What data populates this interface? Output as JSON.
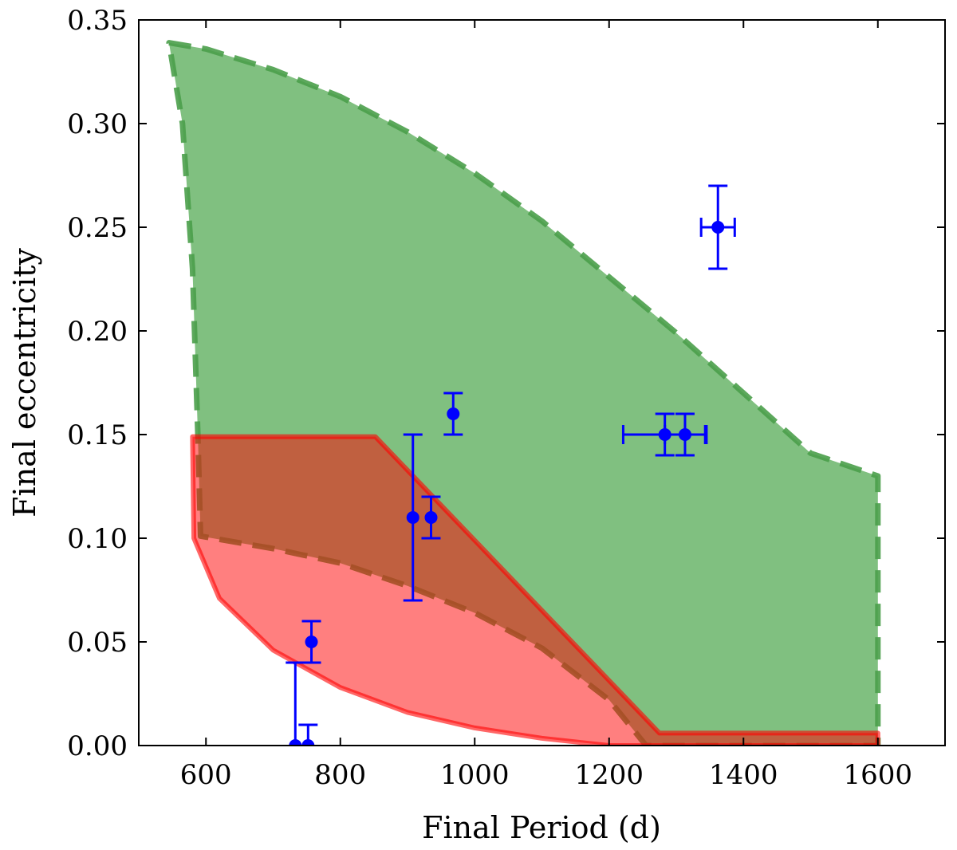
{
  "chart_data": {
    "type": "scatter",
    "title": "",
    "xlabel": "Final Period (d)",
    "ylabel": "Final eccentricity",
    "xlim": [
      500,
      1700
    ],
    "ylim": [
      0.0,
      0.35
    ],
    "x_ticks": [
      600,
      800,
      1000,
      1200,
      1400,
      1600
    ],
    "x_tick_labels": [
      "600",
      "800",
      "1000",
      "1200",
      "1400",
      "1600"
    ],
    "y_ticks": [
      0.0,
      0.05,
      0.1,
      0.15,
      0.2,
      0.25,
      0.3,
      0.35
    ],
    "y_tick_labels": [
      "0.00",
      "0.05",
      "0.10",
      "0.15",
      "0.20",
      "0.25",
      "0.30",
      "0.35"
    ],
    "grid": false,
    "regions": [
      {
        "style": "dashed-outline",
        "fill_color": "#80c080",
        "edge_color": "#4a9f4a",
        "polygon": [
          [
            545,
            0.339
          ],
          [
            600,
            0.336
          ],
          [
            700,
            0.326
          ],
          [
            800,
            0.313
          ],
          [
            900,
            0.296
          ],
          [
            1000,
            0.276
          ],
          [
            1100,
            0.253
          ],
          [
            1200,
            0.226
          ],
          [
            1300,
            0.199
          ],
          [
            1400,
            0.17
          ],
          [
            1500,
            0.141
          ],
          [
            1600,
            0.13
          ],
          [
            1600,
            0.0
          ],
          [
            1255,
            0.0
          ],
          [
            1200,
            0.022
          ],
          [
            1100,
            0.047
          ],
          [
            1000,
            0.064
          ],
          [
            900,
            0.077
          ],
          [
            800,
            0.088
          ],
          [
            700,
            0.095
          ],
          [
            592,
            0.101
          ],
          [
            588,
            0.15
          ],
          [
            580,
            0.23
          ],
          [
            565,
            0.3
          ]
        ]
      },
      {
        "style": "solid-outline",
        "fill_color": "#ff0000",
        "fill_opacity": 0.5,
        "edge_color": "#ff0000",
        "polygon": [
          [
            580,
            0.149
          ],
          [
            852,
            0.149
          ],
          [
            1275,
            0.006
          ],
          [
            1600,
            0.006
          ],
          [
            1600,
            0.0
          ],
          [
            1200,
            0.0
          ],
          [
            1100,
            0.0035
          ],
          [
            1000,
            0.0085
          ],
          [
            900,
            0.016
          ],
          [
            800,
            0.028
          ],
          [
            700,
            0.046
          ],
          [
            620,
            0.071
          ],
          [
            582,
            0.1
          ]
        ]
      }
    ],
    "series": [
      {
        "marker_color": "#0000ff",
        "points": [
          {
            "x": 733,
            "y": 0.0,
            "y_err_low": 0.0,
            "y_err_high": 0.04,
            "x_err": 0
          },
          {
            "x": 752,
            "y": 0.0,
            "y_err_low": 0.0,
            "y_err_high": 0.01,
            "x_err": 0
          },
          {
            "x": 757,
            "y": 0.05,
            "y_err_low": 0.01,
            "y_err_high": 0.01,
            "x_err": 0
          },
          {
            "x": 908,
            "y": 0.11,
            "y_err_low": 0.04,
            "y_err_high": 0.04,
            "x_err": 0
          },
          {
            "x": 935,
            "y": 0.11,
            "y_err_low": 0.01,
            "y_err_high": 0.01,
            "x_err": 0
          },
          {
            "x": 968,
            "y": 0.16,
            "y_err_low": 0.01,
            "y_err_high": 0.01,
            "x_err": 0
          },
          {
            "x": 1283,
            "y": 0.15,
            "y_err_low": 0.01,
            "y_err_high": 0.01,
            "x_err": 62
          },
          {
            "x": 1313,
            "y": 0.15,
            "y_err_low": 0.01,
            "y_err_high": 0.01,
            "x_err": 30
          },
          {
            "x": 1362,
            "y": 0.25,
            "y_err_low": 0.02,
            "y_err_high": 0.02,
            "x_err": 25
          }
        ]
      }
    ]
  }
}
